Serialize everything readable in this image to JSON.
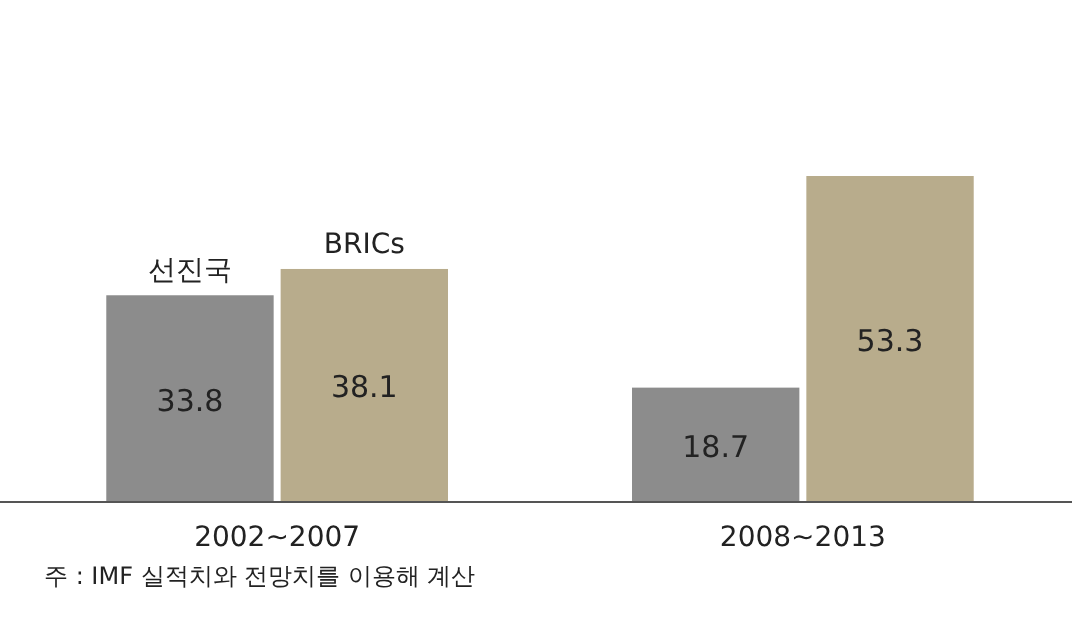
{
  "chart_data": {
    "type": "bar",
    "categories": [
      "2002~2007",
      "2008~2013"
    ],
    "series": [
      {
        "name": "선진국",
        "color": "#8c8c8c",
        "values": [
          33.8,
          18.7
        ]
      },
      {
        "name": "BRICs",
        "color": "#b8ac8c",
        "values": [
          38.1,
          53.3
        ]
      }
    ],
    "data_labels": true,
    "legend": false,
    "annotations": [
      "주 : IMF 실적치와 전망치를 이용해 계산"
    ]
  }
}
